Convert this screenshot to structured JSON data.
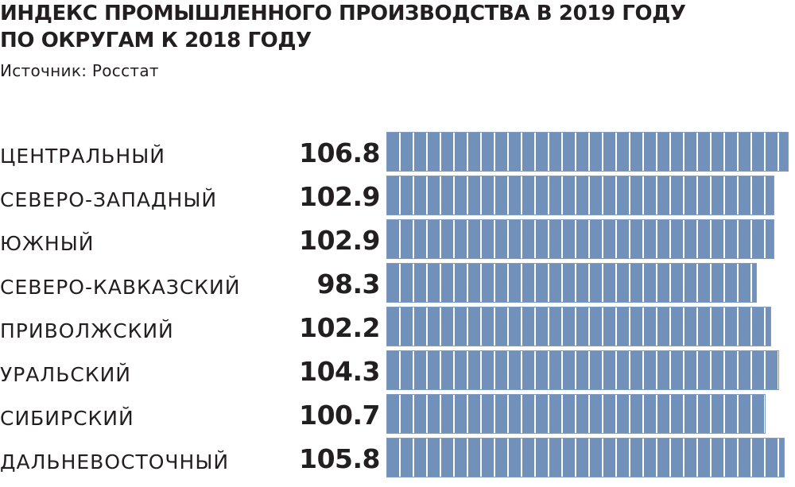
{
  "header": {
    "title_line1": "ИНДЕКС ПРОМЫШЛЕННОГО ПРОИЗВОДСТВА В 2019 ГОДУ",
    "title_line2": "ПО ОКРУГАМ К 2018 ГОДУ",
    "source": "Источник: Росстат"
  },
  "colors": {
    "bar": "#7191bb",
    "text": "#231f20"
  },
  "chart_data": {
    "type": "bar",
    "orientation": "horizontal",
    "title": "ИНДЕКС ПРОМЫШЛЕННОГО ПРОИЗВОДСТВА В 2019 ГОДУ ПО ОКРУГАМ К 2018 ГОДУ",
    "categories": [
      "ЦЕНТРАЛЬНЫЙ",
      "СЕВЕРО-ЗАПАДНЫЙ",
      "ЮЖНЫЙ",
      "СЕВЕРО-КАВКАЗСКИЙ",
      "ПРИВОЛЖСКИЙ",
      "УРАЛЬСКИЙ",
      "СИБИРСКИЙ",
      "ДАЛЬНЕВОСТОЧНЫЙ"
    ],
    "values": [
      106.8,
      102.9,
      102.9,
      98.3,
      102.2,
      104.3,
      100.7,
      105.8
    ],
    "value_labels": [
      "106.8",
      "102.9",
      "102.9",
      "98.3",
      "102.2",
      "104.3",
      "100.7",
      "105.8"
    ],
    "xlim": [
      0,
      106.8
    ],
    "grid": false,
    "legend": "none"
  }
}
